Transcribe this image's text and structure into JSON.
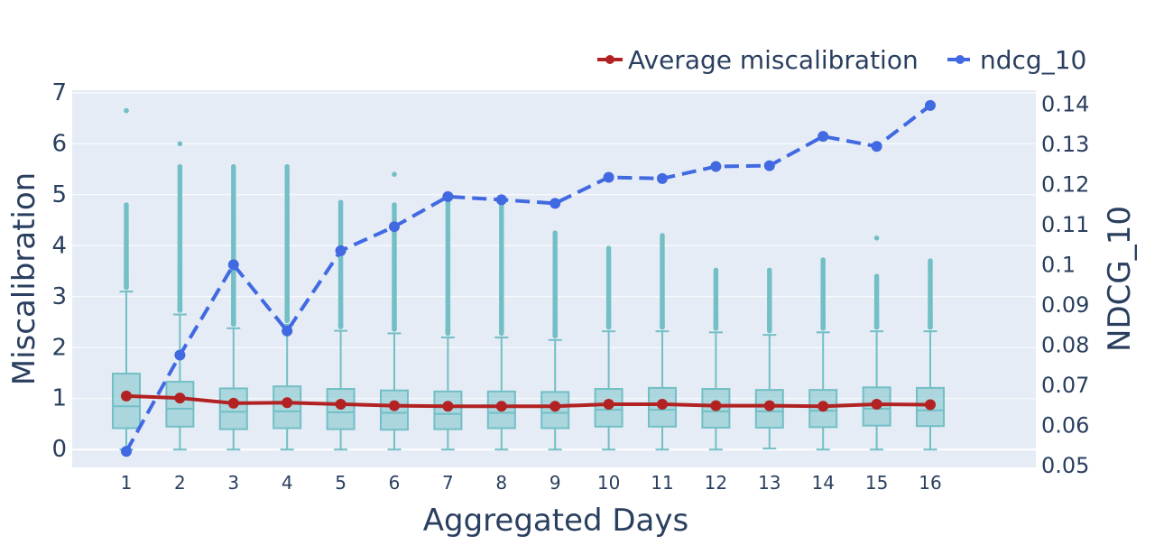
{
  "chart_data": {
    "type": "box",
    "title": "",
    "xlabel": "Aggregated Days",
    "ylabel": "Miscalibration",
    "y2label": "NDCG_10",
    "categories": [
      "1",
      "2",
      "3",
      "4",
      "5",
      "6",
      "7",
      "8",
      "9",
      "10",
      "11",
      "12",
      "13",
      "14",
      "15",
      "16"
    ],
    "ylim": [
      -0.35,
      7.05
    ],
    "y2lim": [
      0.0495,
      0.1435
    ],
    "yticks": [
      "0",
      "1",
      "2",
      "3",
      "4",
      "5",
      "6",
      "7"
    ],
    "y2ticks": [
      "0.05",
      "0.06",
      "0.07",
      "0.08",
      "0.09",
      "0.1",
      "0.11",
      "0.12",
      "0.13",
      "0.14"
    ],
    "box_series": {
      "name": "Miscalibration",
      "color": "#72bfc5",
      "boxes": [
        {
          "min": 0.0,
          "q1": 0.42,
          "median": 0.85,
          "q3": 1.49,
          "whisker_high": 3.1,
          "outlier_max": 4.8,
          "extreme": 6.65
        },
        {
          "min": 0.0,
          "q1": 0.45,
          "median": 0.8,
          "q3": 1.33,
          "whisker_high": 2.65,
          "outlier_max": 5.55,
          "extreme": 6.0
        },
        {
          "min": 0.0,
          "q1": 0.4,
          "median": 0.74,
          "q3": 1.2,
          "whisker_high": 2.38,
          "outlier_max": 5.55
        },
        {
          "min": 0.0,
          "q1": 0.42,
          "median": 0.75,
          "q3": 1.24,
          "whisker_high": 2.45,
          "outlier_max": 5.55
        },
        {
          "min": 0.0,
          "q1": 0.4,
          "median": 0.73,
          "q3": 1.19,
          "whisker_high": 2.33,
          "outlier_max": 4.85
        },
        {
          "min": 0.0,
          "q1": 0.39,
          "median": 0.72,
          "q3": 1.16,
          "whisker_high": 2.28,
          "outlier_max": 4.8,
          "extreme": 5.4
        },
        {
          "min": 0.0,
          "q1": 0.4,
          "median": 0.7,
          "q3": 1.14,
          "whisker_high": 2.2,
          "outlier_max": 4.85
        },
        {
          "min": 0.0,
          "q1": 0.42,
          "median": 0.72,
          "q3": 1.14,
          "whisker_high": 2.2,
          "outlier_max": 4.8
        },
        {
          "min": 0.0,
          "q1": 0.42,
          "median": 0.72,
          "q3": 1.13,
          "whisker_high": 2.15,
          "outlier_max": 4.25
        },
        {
          "min": 0.0,
          "q1": 0.45,
          "median": 0.78,
          "q3": 1.19,
          "whisker_high": 2.32,
          "outlier_max": 3.95
        },
        {
          "min": 0.0,
          "q1": 0.45,
          "median": 0.78,
          "q3": 1.21,
          "whisker_high": 2.32,
          "outlier_max": 4.2
        },
        {
          "min": 0.0,
          "q1": 0.43,
          "median": 0.75,
          "q3": 1.19,
          "whisker_high": 2.3,
          "outlier_max": 3.52
        },
        {
          "min": 0.02,
          "q1": 0.43,
          "median": 0.75,
          "q3": 1.17,
          "whisker_high": 2.25,
          "outlier_max": 3.52
        },
        {
          "min": 0.0,
          "q1": 0.44,
          "median": 0.76,
          "q3": 1.17,
          "whisker_high": 2.3,
          "outlier_max": 3.72
        },
        {
          "min": 0.0,
          "q1": 0.47,
          "median": 0.8,
          "q3": 1.22,
          "whisker_high": 2.32,
          "outlier_max": 3.4,
          "extreme": 4.15
        },
        {
          "min": 0.0,
          "q1": 0.46,
          "median": 0.77,
          "q3": 1.21,
          "whisker_high": 2.32,
          "outlier_max": 3.7
        }
      ]
    },
    "series": [
      {
        "name": "Average miscalibration",
        "axis": "left",
        "color": "#b22222",
        "dash": "solid",
        "values": [
          1.05,
          1.01,
          0.91,
          0.92,
          0.89,
          0.86,
          0.85,
          0.85,
          0.85,
          0.89,
          0.89,
          0.86,
          0.86,
          0.85,
          0.89,
          0.88
        ]
      },
      {
        "name": "ndcg_10",
        "axis": "right",
        "color": "#4169e1",
        "dash": "dash",
        "values": [
          0.0535,
          0.0775,
          0.1,
          0.0835,
          0.1035,
          0.1095,
          0.117,
          0.1162,
          0.1153,
          0.1218,
          0.1215,
          0.1245,
          0.1247,
          0.132,
          0.1295,
          0.1397
        ]
      }
    ],
    "legend": {
      "position": "top-right",
      "entries": [
        "Average miscalibration",
        "ndcg_10"
      ]
    },
    "grid": true
  }
}
